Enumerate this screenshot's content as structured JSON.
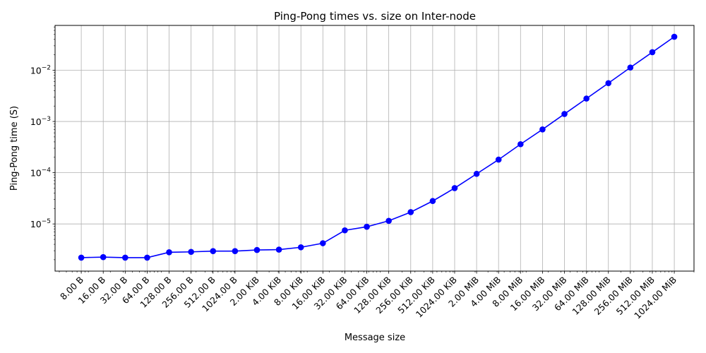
{
  "chart_data": {
    "type": "line",
    "title": "Ping-Pong times vs. size on Inter-node",
    "xlabel": "Message size",
    "ylabel": "Ping-Pong time (S)",
    "x_scale": "log2",
    "y_scale": "log10",
    "grid": true,
    "line_color": "#0000ff",
    "marker": "circle",
    "x_bytes": [
      8,
      16,
      32,
      64,
      128,
      256,
      512,
      1024,
      2048,
      4096,
      8192,
      16384,
      32768,
      65536,
      131072,
      262144,
      524288,
      1048576,
      2097152,
      4194304,
      8388608,
      16777216,
      33554432,
      67108864,
      134217728,
      268435456,
      536870912,
      1073741824
    ],
    "tick_labels": [
      "8.00 B",
      "16.00 B",
      "32.00 B",
      "64.00 B",
      "128.00 B",
      "256.00 B",
      "512.00 B",
      "1024.00 B",
      "2.00 KiB",
      "4.00 KiB",
      "8.00 KiB",
      "16.00 KiB",
      "32.00 KiB",
      "64.00 KiB",
      "128.00 KiB",
      "256.00 KiB",
      "512.00 KiB",
      "1024.00 KiB",
      "2.00 MiB",
      "4.00 MiB",
      "8.00 MiB",
      "16.00 MiB",
      "32.00 MiB",
      "64.00 MiB",
      "128.00 MiB",
      "256.00 MiB",
      "512.00 MiB",
      "1024.00 MiB"
    ],
    "values": [
      2.2e-06,
      2.25e-06,
      2.2e-06,
      2.2e-06,
      2.8e-06,
      2.85e-06,
      2.95e-06,
      2.95e-06,
      3.1e-06,
      3.15e-06,
      3.5e-06,
      4.2e-06,
      7.5e-06,
      8.8e-06,
      1.15e-05,
      1.7e-05,
      2.8e-05,
      5e-05,
      9.5e-05,
      0.00018,
      0.00036,
      0.0007,
      0.0014,
      0.0028,
      0.0056,
      0.0113,
      0.0225,
      0.045
    ],
    "y_major_ticks": [
      1e-05,
      0.0001,
      0.001,
      0.01
    ],
    "y_tick_base": "10",
    "y_tick_exponents": [
      "−5",
      "−4",
      "−3",
      "−2"
    ],
    "ylim": [
      1.2e-06,
      0.075
    ],
    "xlim": [
      3.5,
      2000000000
    ]
  }
}
